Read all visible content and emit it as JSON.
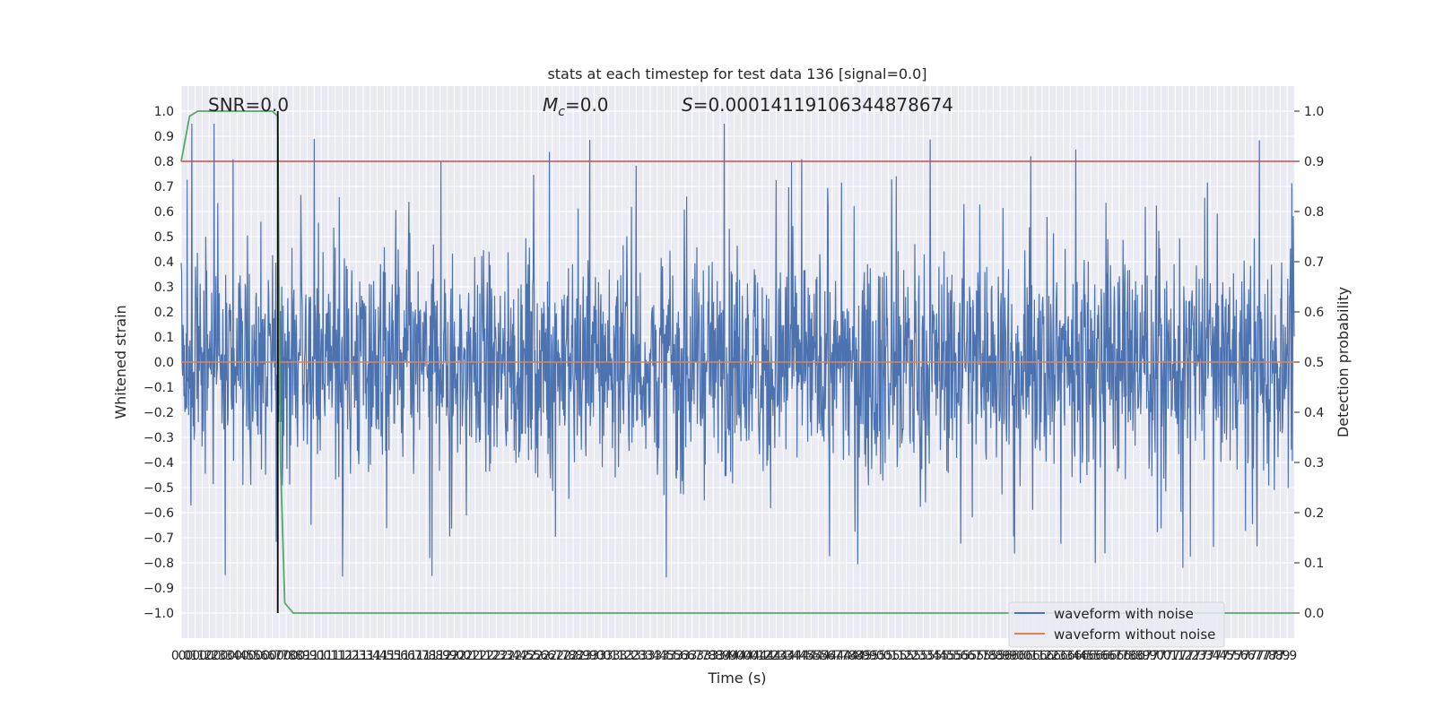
{
  "chart_data": {
    "type": "line",
    "title": "stats at each timestep for test data 136 [signal=0.0]",
    "annotations": {
      "snr": "SNR=0.0",
      "mc_symbol": "M",
      "mc_subscript": "c",
      "mc_value": "=0.0",
      "s_symbol": "S",
      "s_value": "=0.00014119106344878674"
    },
    "xlabel": "Time (s)",
    "ylabel_left": "Whitened strain",
    "ylabel_right": "Detection probability",
    "xlim": [
      0.0,
      7.95
    ],
    "ylim_left": [
      -1.1,
      1.1
    ],
    "ylim_right": [
      -0.05,
      1.05
    ],
    "x_tick_start": 0.0,
    "x_tick_step": 0.05,
    "x_tick_count": 159,
    "y_ticks_left": [
      -1.0,
      -0.9,
      -0.8,
      -0.7,
      -0.6,
      -0.5,
      -0.4,
      -0.3,
      -0.2,
      -0.1,
      0.0,
      0.1,
      0.2,
      0.3,
      0.4,
      0.5,
      0.6,
      0.7,
      0.8,
      0.9,
      1.0
    ],
    "y_ticks_right": [
      0.0,
      0.1,
      0.2,
      0.3,
      0.4,
      0.5,
      0.6,
      0.7,
      0.8,
      0.9,
      1.0
    ],
    "grid": true,
    "legend": {
      "placement": "lower-right",
      "entries": [
        "waveform with noise",
        "waveform without noise"
      ]
    },
    "series": [
      {
        "name": "waveform with noise",
        "axis": "left",
        "color": "#4c72b0",
        "kind": "noise",
        "typical_amplitude": 0.4,
        "peak_amplitude": 1.0
      },
      {
        "name": "waveform without noise",
        "axis": "left",
        "color": "#dd8452",
        "x": [
          0.0,
          7.95
        ],
        "y": [
          0.0,
          0.0
        ]
      },
      {
        "axis": "right",
        "color": "#55a868",
        "x": [
          0.0,
          0.06,
          0.12,
          0.3,
          0.6,
          0.65,
          0.69,
          0.7,
          0.71,
          0.74,
          0.8,
          7.95
        ],
        "y": [
          0.9,
          0.99,
          1.0,
          1.0,
          1.0,
          1.0,
          0.99,
          0.6,
          0.3,
          0.02,
          0.0,
          0.0
        ]
      },
      {
        "axis": "right",
        "color": "#c44e52",
        "kind": "threshold",
        "y": 0.9
      },
      {
        "axis": "left",
        "color": "#000000",
        "kind": "marker",
        "x": 0.69,
        "y_range": [
          -1.0,
          1.0
        ]
      }
    ]
  }
}
